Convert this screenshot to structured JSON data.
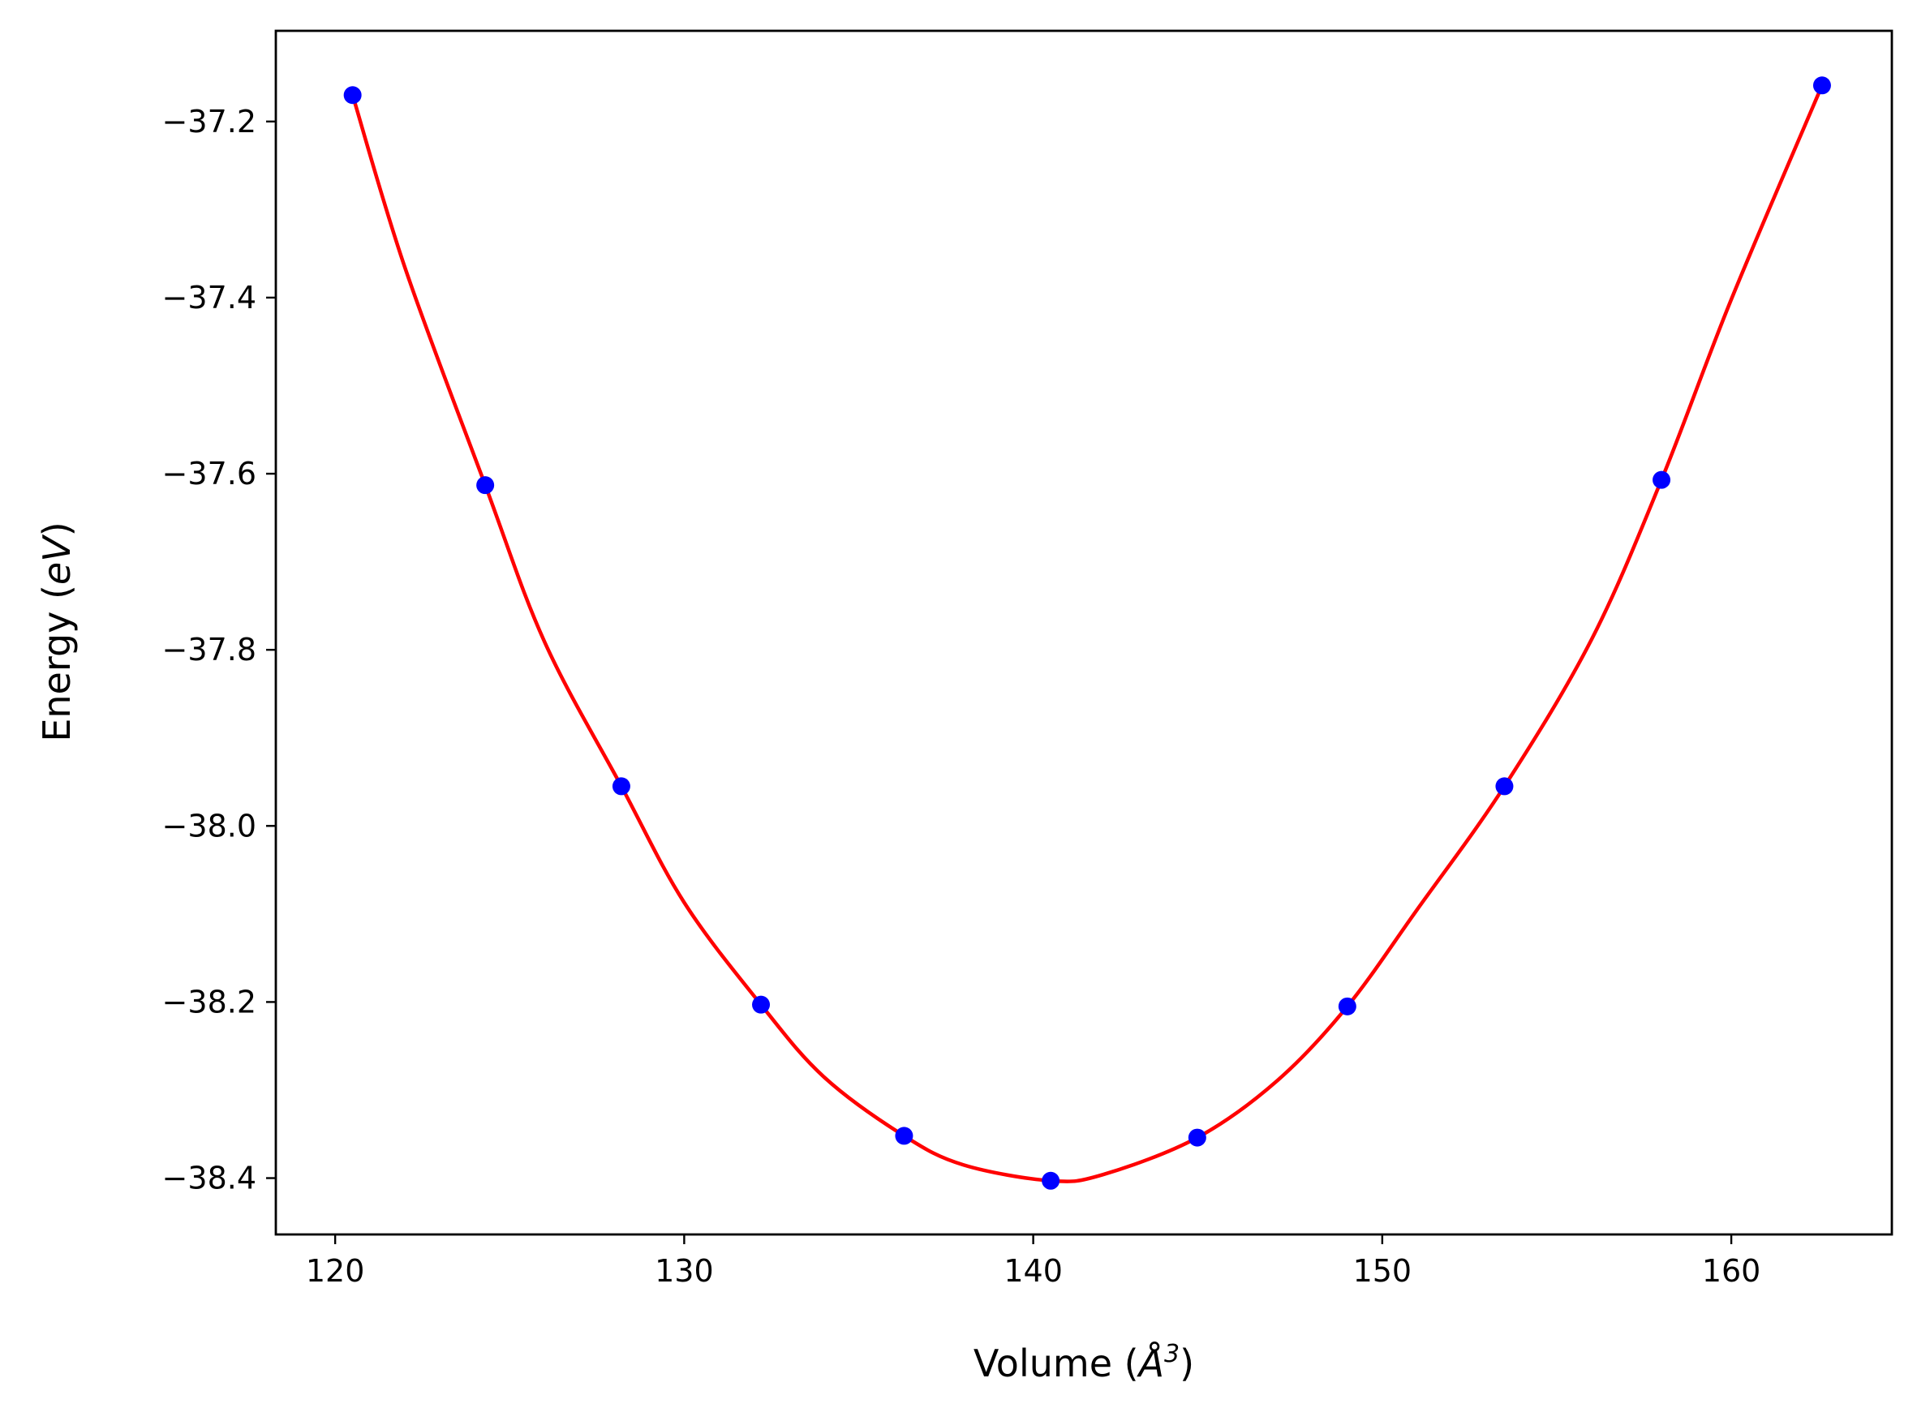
{
  "chart_data": {
    "type": "scatter",
    "xlabel": "Volume (",
    "xlabel_symbol": "Å",
    "xlabel_exponent": "3",
    "xlabel_close": ")",
    "ylabel": "Energy (",
    "ylabel_unit": "eV",
    "ylabel_close": ")",
    "xlim": [
      118.3,
      164.6
    ],
    "ylim": [
      -38.464,
      -37.097
    ],
    "grid": false,
    "x_ticks": [
      120,
      130,
      140,
      150,
      160
    ],
    "x_tick_labels": [
      "120",
      "130",
      "140",
      "150",
      "160"
    ],
    "y_ticks": [
      -37.2,
      -37.4,
      -37.6,
      -37.8,
      -38.0,
      -38.2,
      -38.4
    ],
    "y_tick_labels": [
      "−37.2",
      "−37.4",
      "−37.6",
      "−37.8",
      "−38.0",
      "−38.2",
      "−38.4"
    ],
    "series": [
      {
        "kind": "points",
        "color": "#0000ff",
        "x": [
          120.5,
          124.3,
          128.2,
          132.2,
          136.3,
          140.5,
          144.7,
          149.0,
          153.5,
          158.0,
          162.6
        ],
        "y": [
          -37.17,
          -37.613,
          -37.955,
          -38.203,
          -38.352,
          -38.403,
          -38.354,
          -38.205,
          -37.955,
          -37.607,
          -37.159
        ]
      },
      {
        "kind": "fit-curve",
        "color": "#ff0000",
        "x": [
          120.5,
          122.0,
          124.3,
          126.0,
          128.2,
          130.0,
          132.2,
          134.0,
          136.3,
          138.0,
          140.5,
          142.0,
          144.7,
          147.0,
          149.0,
          151.0,
          153.5,
          156.0,
          158.0,
          160.0,
          162.6
        ],
        "y": [
          -37.17,
          -37.366,
          -37.613,
          -37.791,
          -37.955,
          -38.087,
          -38.203,
          -38.285,
          -38.352,
          -38.385,
          -38.403,
          -38.396,
          -38.354,
          -38.289,
          -38.205,
          -38.095,
          -37.955,
          -37.788,
          -37.607,
          -37.402,
          -37.159
        ]
      }
    ]
  }
}
